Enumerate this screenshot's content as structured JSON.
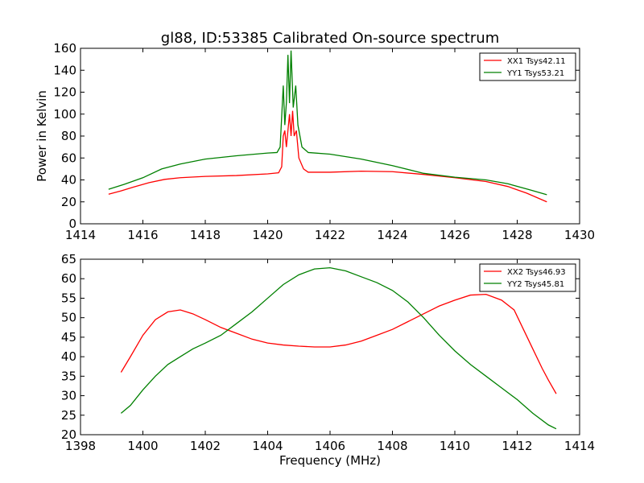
{
  "figure": {
    "title": "gl88, ID:53385 Calibrated On-source spectrum",
    "xlabel": "Frequency (MHz)"
  },
  "chart_data": [
    {
      "type": "line",
      "title": "gl88, ID:53385 Calibrated On-source spectrum",
      "xlabel": "",
      "ylabel": "Power in Kelvin",
      "xlim": [
        1414,
        1430
      ],
      "ylim": [
        0,
        160
      ],
      "xticks": [
        1414,
        1416,
        1418,
        1420,
        1422,
        1424,
        1426,
        1428,
        1430
      ],
      "yticks": [
        0,
        20,
        40,
        60,
        80,
        100,
        120,
        140,
        160
      ],
      "grid": false,
      "legend_position": "top-right",
      "series": [
        {
          "name": "XX1 Tsys42.11",
          "color": "#ff0000",
          "points": [
            [
              1414.9,
              27
            ],
            [
              1415.3,
              30
            ],
            [
              1415.7,
              33.5
            ],
            [
              1416.2,
              37.5
            ],
            [
              1416.7,
              40.5
            ],
            [
              1417.2,
              42
            ],
            [
              1418.0,
              43.2
            ],
            [
              1419.0,
              44
            ],
            [
              1420.0,
              45.5
            ],
            [
              1420.35,
              46.5
            ],
            [
              1420.45,
              52
            ],
            [
              1420.5,
              80
            ],
            [
              1420.55,
              85
            ],
            [
              1420.6,
              70
            ],
            [
              1420.7,
              100
            ],
            [
              1420.75,
              80
            ],
            [
              1420.8,
              103
            ],
            [
              1420.85,
              80
            ],
            [
              1420.92,
              85
            ],
            [
              1421.0,
              60
            ],
            [
              1421.15,
              50
            ],
            [
              1421.3,
              47
            ],
            [
              1422.0,
              47
            ],
            [
              1423.0,
              48
            ],
            [
              1424.0,
              47.5
            ],
            [
              1425.0,
              45
            ],
            [
              1426.0,
              42
            ],
            [
              1427.0,
              38.5
            ],
            [
              1427.7,
              34
            ],
            [
              1428.3,
              28
            ],
            [
              1428.95,
              20
            ]
          ]
        },
        {
          "name": "YY1 Tsys53.21",
          "color": "#008000",
          "points": [
            [
              1414.9,
              31.5
            ],
            [
              1415.4,
              36
            ],
            [
              1416.0,
              42
            ],
            [
              1416.6,
              50
            ],
            [
              1417.2,
              54.5
            ],
            [
              1418.0,
              59
            ],
            [
              1419.0,
              62
            ],
            [
              1420.0,
              64.5
            ],
            [
              1420.3,
              65
            ],
            [
              1420.4,
              70
            ],
            [
              1420.5,
              126
            ],
            [
              1420.55,
              90
            ],
            [
              1420.6,
              110
            ],
            [
              1420.65,
              154
            ],
            [
              1420.7,
              110
            ],
            [
              1420.75,
              158
            ],
            [
              1420.82,
              106
            ],
            [
              1420.9,
              126
            ],
            [
              1420.97,
              90
            ],
            [
              1421.1,
              70
            ],
            [
              1421.3,
              65
            ],
            [
              1422.0,
              63.5
            ],
            [
              1423.0,
              59
            ],
            [
              1424.0,
              53
            ],
            [
              1425.0,
              46
            ],
            [
              1426.0,
              42.5
            ],
            [
              1427.0,
              40
            ],
            [
              1427.7,
              36.5
            ],
            [
              1428.4,
              31
            ],
            [
              1428.95,
              26.5
            ]
          ]
        }
      ]
    },
    {
      "type": "line",
      "title": "",
      "xlabel": "Frequency (MHz)",
      "ylabel": "",
      "xlim": [
        1398,
        1414
      ],
      "ylim": [
        20,
        65
      ],
      "xticks": [
        1398,
        1400,
        1402,
        1404,
        1406,
        1408,
        1410,
        1412,
        1414
      ],
      "yticks": [
        20,
        25,
        30,
        35,
        40,
        45,
        50,
        55,
        60,
        65
      ],
      "grid": false,
      "legend_position": "top-right",
      "series": [
        {
          "name": "XX2 Tsys46.93",
          "color": "#ff0000",
          "points": [
            [
              1399.3,
              36
            ],
            [
              1399.6,
              40
            ],
            [
              1400.0,
              45.5
            ],
            [
              1400.4,
              49.5
            ],
            [
              1400.8,
              51.5
            ],
            [
              1401.2,
              52
            ],
            [
              1401.6,
              51
            ],
            [
              1402.0,
              49.5
            ],
            [
              1402.5,
              47.5
            ],
            [
              1403.0,
              46
            ],
            [
              1403.5,
              44.5
            ],
            [
              1404.0,
              43.5
            ],
            [
              1404.5,
              43
            ],
            [
              1405.0,
              42.7
            ],
            [
              1405.5,
              42.5
            ],
            [
              1406.0,
              42.5
            ],
            [
              1406.5,
              43
            ],
            [
              1407.0,
              44
            ],
            [
              1407.5,
              45.5
            ],
            [
              1408.0,
              47
            ],
            [
              1408.5,
              49
            ],
            [
              1409.0,
              51
            ],
            [
              1409.5,
              53
            ],
            [
              1410.0,
              54.5
            ],
            [
              1410.5,
              55.8
            ],
            [
              1411.0,
              56
            ],
            [
              1411.5,
              54.5
            ],
            [
              1411.9,
              52
            ],
            [
              1412.2,
              47
            ],
            [
              1412.5,
              42
            ],
            [
              1412.8,
              37
            ],
            [
              1413.0,
              34
            ],
            [
              1413.25,
              30.5
            ]
          ]
        },
        {
          "name": "YY2 Tsys45.81",
          "color": "#008000",
          "points": [
            [
              1399.3,
              25.5
            ],
            [
              1399.6,
              27.5
            ],
            [
              1400.0,
              31.5
            ],
            [
              1400.4,
              35
            ],
            [
              1400.8,
              38
            ],
            [
              1401.2,
              40
            ],
            [
              1401.6,
              42
            ],
            [
              1402.0,
              43.5
            ],
            [
              1402.5,
              45.5
            ],
            [
              1403.0,
              48.5
            ],
            [
              1403.5,
              51.5
            ],
            [
              1404.0,
              55
            ],
            [
              1404.5,
              58.5
            ],
            [
              1405.0,
              61
            ],
            [
              1405.5,
              62.5
            ],
            [
              1406.0,
              62.8
            ],
            [
              1406.5,
              62
            ],
            [
              1407.0,
              60.5
            ],
            [
              1407.5,
              59
            ],
            [
              1408.0,
              57
            ],
            [
              1408.5,
              54
            ],
            [
              1409.0,
              50
            ],
            [
              1409.5,
              45.5
            ],
            [
              1410.0,
              41.5
            ],
            [
              1410.5,
              38
            ],
            [
              1411.0,
              35
            ],
            [
              1411.5,
              32
            ],
            [
              1412.0,
              29
            ],
            [
              1412.5,
              25.5
            ],
            [
              1413.0,
              22.5
            ],
            [
              1413.25,
              21.5
            ]
          ]
        }
      ]
    }
  ]
}
